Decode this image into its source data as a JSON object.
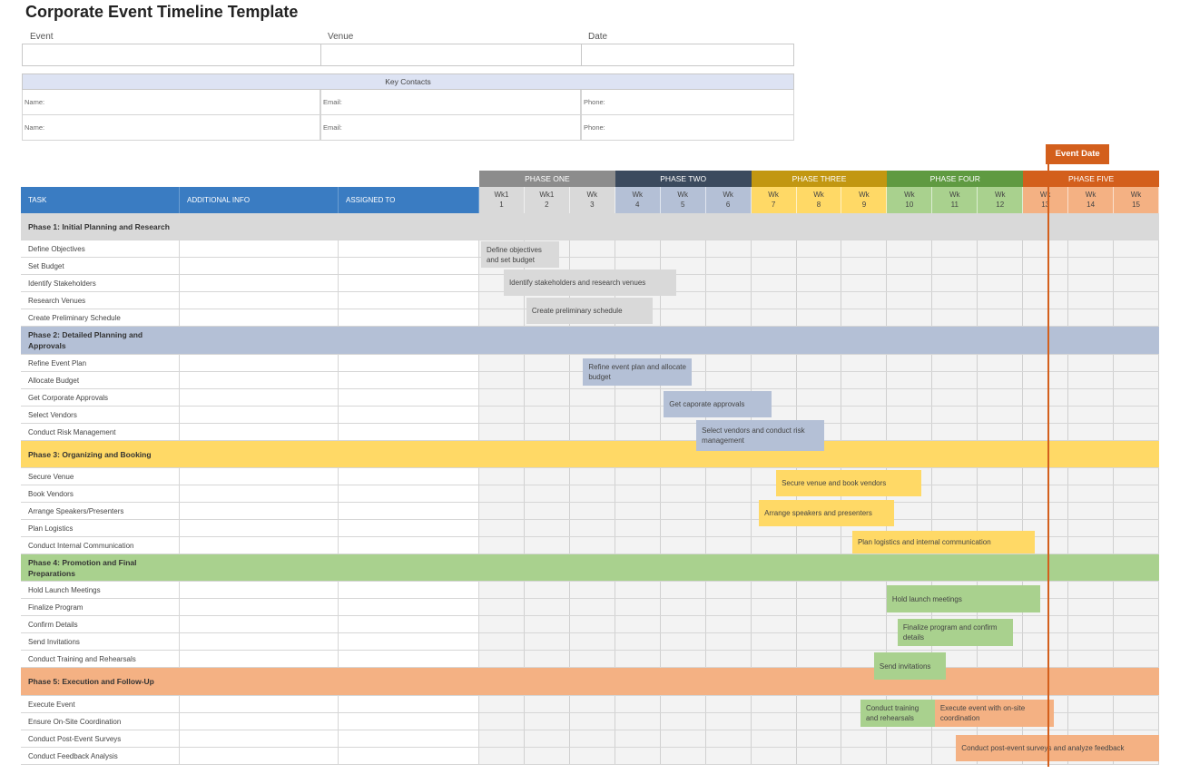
{
  "title": "Corporate Event Timeline Template",
  "info": {
    "event_label": "Event",
    "venue_label": "Venue",
    "date_label": "Date",
    "event_value": "",
    "venue_value": "",
    "date_value": ""
  },
  "key_contacts": {
    "title": "Key Contacts",
    "rows": [
      {
        "name": "Name:",
        "email": "Email:",
        "phone": "Phone:"
      },
      {
        "name": "Name:",
        "email": "Email:",
        "phone": "Phone:"
      }
    ]
  },
  "columns": {
    "task": "TASK",
    "info": "ADDITIONAL INFO",
    "assigned": "ASSIGNED TO"
  },
  "event_date_label": "Event Date",
  "event_date_week": 13.54,
  "phases": [
    {
      "label": "PHASE ONE",
      "color": "#8c8c8c",
      "light": "#d9d9d9",
      "weeks": [
        [
          "Wk1",
          "1"
        ],
        [
          "Wk1",
          "2"
        ],
        [
          "Wk",
          "3"
        ]
      ]
    },
    {
      "label": "PHASE TWO",
      "color": "#3b4a5e",
      "light": "#b4c0d6",
      "weeks": [
        [
          "Wk",
          "4"
        ],
        [
          "Wk",
          "5"
        ],
        [
          "Wk",
          "6"
        ]
      ]
    },
    {
      "label": "PHASE THREE",
      "color": "#c29711",
      "light": "#ffd966",
      "weeks": [
        [
          "Wk",
          "7"
        ],
        [
          "Wk",
          "8"
        ],
        [
          "Wk",
          "9"
        ]
      ]
    },
    {
      "label": "PHASE FOUR",
      "color": "#5f9a41",
      "light": "#a9d18e",
      "weeks": [
        [
          "Wk",
          "10"
        ],
        [
          "Wk",
          "11"
        ],
        [
          "Wk",
          "12"
        ]
      ]
    },
    {
      "label": "PHASE FIVE",
      "color": "#d35f1c",
      "light": "#f4b183",
      "weeks": [
        [
          "Wk",
          "13"
        ],
        [
          "Wk",
          "14"
        ],
        [
          "Wk",
          "15"
        ]
      ]
    }
  ],
  "sections": [
    {
      "title": "Phase 1: Initial Planning and Research",
      "color": "#d9d9d9",
      "tasks": [
        "Define Objectives",
        "Set Budget",
        "Identify Stakeholders",
        "Research Venues",
        "Create Preliminary Schedule"
      ]
    },
    {
      "title": "Phase 2: Detailed Planning and Approvals",
      "color": "#b4c0d6",
      "tasks": [
        "Refine Event Plan",
        "Allocate Budget",
        "Get Corporate Approvals",
        "Select Vendors",
        "Conduct Risk Management"
      ]
    },
    {
      "title": "Phase 3: Organizing and Booking",
      "color": "#ffd966",
      "tasks": [
        "Secure Venue",
        "Book Vendors",
        "Arrange Speakers/Presenters",
        "Plan Logistics",
        "Conduct Internal Communication"
      ]
    },
    {
      "title": "Phase 4: Promotion and Final Preparations",
      "color": "#a9d18e",
      "tasks": [
        "Hold Launch Meetings",
        "Finalize Program",
        "Confirm Details",
        "Send Invitations",
        "Conduct Training and Rehearsals"
      ]
    },
    {
      "title": "Phase 5: Execution and Follow-Up",
      "color": "#f4b183",
      "tasks": [
        "Execute Event",
        "Ensure On-Site Coordination",
        "Conduct Post-Event Surveys",
        "Conduct Feedback Analysis"
      ]
    }
  ],
  "bars": [
    {
      "label": "Define objectives and set budget",
      "start_week": 1.04,
      "end_week": 2.76,
      "color": "#d9d9d9"
    },
    {
      "label": "Identify stakeholders and research venues",
      "start_week": 1.54,
      "end_week": 5.35,
      "color": "#d9d9d9"
    },
    {
      "label": "Create preliminary schedule",
      "start_week": 2.04,
      "end_week": 4.83,
      "color": "#d9d9d9"
    },
    {
      "label": "Refine event plan and allocate budget",
      "start_week": 3.29,
      "end_week": 5.69,
      "color": "#b4c0d6"
    },
    {
      "label": "Get caporate approvals",
      "start_week": 5.07,
      "end_week": 7.45,
      "color": "#b4c0d6"
    },
    {
      "label": "Select vendors and conduct risk management",
      "start_week": 5.79,
      "end_week": 8.61,
      "color": "#b4c0d6"
    },
    {
      "label": "Secure venue and book vendors",
      "start_week": 7.55,
      "end_week": 10.76,
      "color": "#ffd966"
    },
    {
      "label": "Arrange speakers and presenters",
      "start_week": 7.17,
      "end_week": 10.16,
      "color": "#ffd966"
    },
    {
      "label": "Plan logistics and internal communication",
      "start_week": 9.23,
      "end_week": 13.26,
      "color": "#ffd966"
    },
    {
      "label": "Hold launch meetings",
      "start_week": 9.99,
      "end_week": 13.38,
      "color": "#a9d18e"
    },
    {
      "label": "Finalize program and confirm details",
      "start_week": 10.23,
      "end_week": 12.78,
      "color": "#a9d18e"
    },
    {
      "label": "Send invitations",
      "start_week": 9.71,
      "end_week": 11.29,
      "color": "#a9d18e"
    },
    {
      "label": "Conduct training and rehearsals",
      "start_week": 9.41,
      "end_week": 11.05,
      "color": "#a9d18e"
    },
    {
      "label": "Execute event with on-site coordination",
      "start_week": 11.05,
      "end_week": 13.68,
      "color": "#f4b183"
    },
    {
      "label": "Conduct post-event surveys and analyze feedback",
      "start_week": 11.52,
      "end_week": 16.0,
      "color": "#f4b183"
    }
  ]
}
